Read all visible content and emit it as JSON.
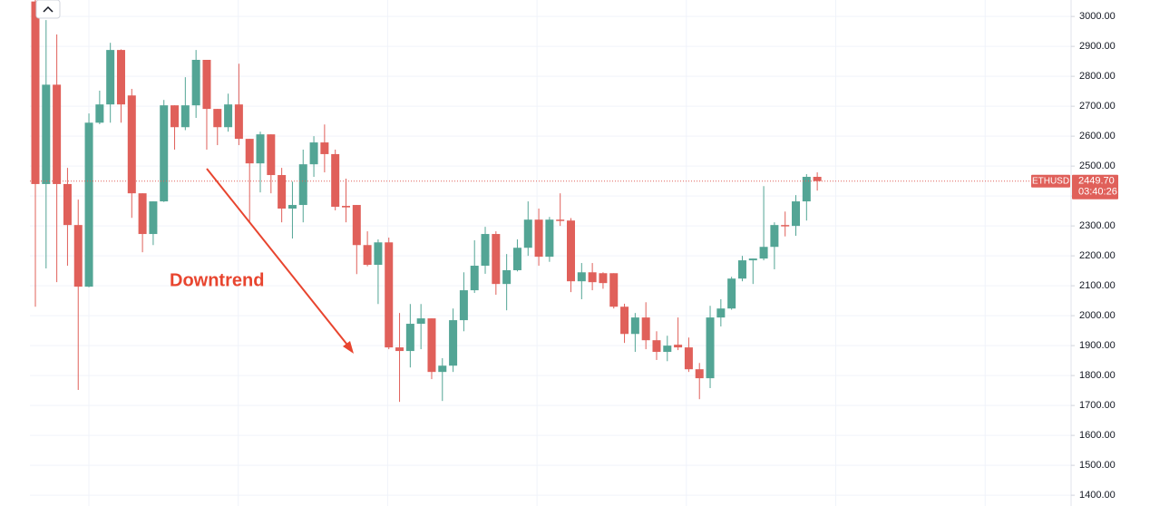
{
  "chart_data": {
    "type": "candlestick",
    "symbol": "ETHUSD",
    "last_price": {
      "value": 2449.7,
      "label": "2449.70"
    },
    "countdown": "03:40:26",
    "annotation": "Downtrend",
    "up_color": "#53a595",
    "down_color": "#e0605a",
    "grid": true,
    "ylim": [
      1364,
      3055
    ],
    "yticks": [
      {
        "value": 1400,
        "label": "1400.00"
      },
      {
        "value": 1500,
        "label": "1500.00"
      },
      {
        "value": 1600,
        "label": "1600.00"
      },
      {
        "value": 1700,
        "label": "1700.00"
      },
      {
        "value": 1800,
        "label": "1800.00"
      },
      {
        "value": 1900,
        "label": "1900.00"
      },
      {
        "value": 2000,
        "label": "2000.00"
      },
      {
        "value": 2100,
        "label": "2100.00"
      },
      {
        "value": 2200,
        "label": "2200.00"
      },
      {
        "value": 2300,
        "label": "2300.00"
      },
      {
        "value": 2400,
        "label": "2400.00"
      },
      {
        "value": 2500,
        "label": "2500.00"
      },
      {
        "value": 2600,
        "label": "2600.00"
      },
      {
        "value": 2700,
        "label": "2700.00"
      },
      {
        "value": 2800,
        "label": "2800.00"
      },
      {
        "value": 2900,
        "label": "2900.00"
      },
      {
        "value": 3000,
        "label": "3000.00"
      }
    ],
    "open": [
      3050,
      2440,
      2772,
      2440,
      2303,
      2097,
      2645,
      2706,
      2888,
      2736,
      2409,
      2273,
      2382,
      2703,
      2630,
      2703,
      2855,
      2691,
      2630,
      2706,
      2591,
      2509,
      2606,
      2470,
      2358,
      2370,
      2506,
      2579,
      2540,
      2367,
      2370,
      2236,
      2170,
      2245,
      1894,
      1882,
      1973,
      1991,
      1812,
      1833,
      1985,
      2085,
      2167,
      2273,
      2106,
      2152,
      2227,
      2321,
      2197,
      2321,
      2318,
      2115,
      2145,
      2142,
      2142,
      2030,
      1939,
      1994,
      1918,
      1879,
      1903,
      1894,
      1821,
      1791,
      1994,
      2024,
      2124,
      2185,
      2191,
      2230,
      2303,
      2300,
      2382,
      2464
    ],
    "high": [
      3055,
      2988,
      2940,
      2494,
      2388,
      2676,
      2752,
      2912,
      2890,
      2758,
      2409,
      2382,
      2721,
      2703,
      2797,
      2888,
      2855,
      2691,
      2742,
      2842,
      2591,
      2615,
      2606,
      2494,
      2448,
      2555,
      2600,
      2639,
      2555,
      2458,
      2370,
      2282,
      2255,
      2261,
      2009,
      2039,
      2039,
      1991,
      1858,
      2024,
      2145,
      2252,
      2297,
      2282,
      2206,
      2255,
      2382,
      2358,
      2330,
      2409,
      2326,
      2176,
      2176,
      2145,
      2142,
      2040,
      2009,
      2045,
      1948,
      1933,
      1994,
      1927,
      1842,
      2033,
      2055,
      2130,
      2200,
      2191,
      2433,
      2312,
      2348,
      2403,
      2473,
      2479
    ],
    "low": [
      2030,
      2158,
      2112,
      2167,
      1752,
      2095,
      2640,
      2645,
      2645,
      2327,
      2212,
      2236,
      2380,
      2555,
      2620,
      2661,
      2555,
      2570,
      2615,
      2570,
      2312,
      2412,
      2409,
      2312,
      2258,
      2312,
      2464,
      2479,
      2352,
      2312,
      2139,
      2165,
      2039,
      1888,
      1712,
      1827,
      1888,
      1788,
      1715,
      1812,
      1948,
      2076,
      2140,
      2070,
      2018,
      2148,
      2200,
      2167,
      2180,
      2300,
      2079,
      2055,
      2085,
      2090,
      2024,
      1909,
      1879,
      1888,
      1852,
      1848,
      1885,
      1812,
      1721,
      1758,
      1964,
      2020,
      2115,
      2106,
      2185,
      2155,
      2265,
      2267,
      2318,
      2418
    ],
    "close": [
      2440,
      2772,
      2440,
      2303,
      2097,
      2645,
      2706,
      2888,
      2706,
      2409,
      2273,
      2382,
      2703,
      2630,
      2703,
      2855,
      2691,
      2630,
      2706,
      2591,
      2509,
      2606,
      2470,
      2358,
      2370,
      2506,
      2579,
      2540,
      2364,
      2362,
      2236,
      2170,
      2245,
      1894,
      1882,
      1973,
      1991,
      1812,
      1833,
      1985,
      2085,
      2167,
      2273,
      2106,
      2152,
      2227,
      2321,
      2197,
      2321,
      2318,
      2115,
      2145,
      2112,
      2109,
      2030,
      1939,
      1994,
      1918,
      1879,
      1900,
      1894,
      1821,
      1791,
      1994,
      2024,
      2124,
      2185,
      2191,
      2230,
      2303,
      2300,
      2382,
      2464,
      2449.7
    ]
  }
}
